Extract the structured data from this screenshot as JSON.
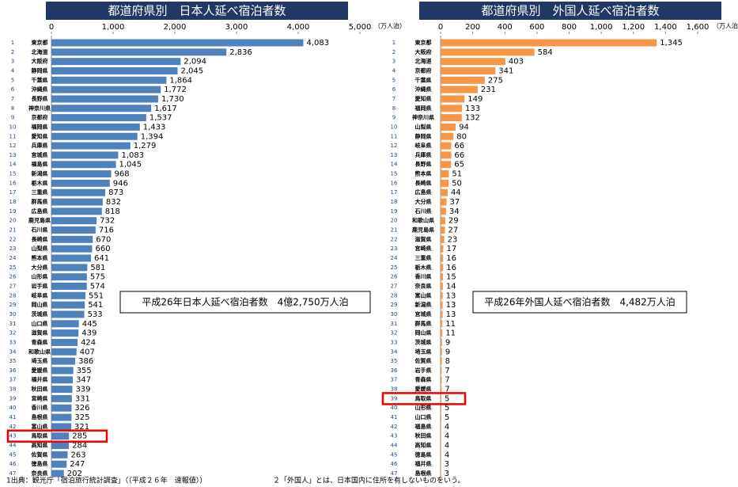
{
  "chart_data": [
    {
      "type": "bar",
      "orientation": "horizontal",
      "title": "都道府県別　日本人延べ宿泊者数",
      "unit": "（万人泊）",
      "color": "#4f81bd",
      "annotation": "平成26年日本人延べ宿泊者数　4億2,750万人泊",
      "highlight_index": 42,
      "xlim": [
        0,
        5000
      ],
      "xticks": [
        0,
        {
          "value": 1000,
          "label": "1,000"
        },
        {
          "value": 2000,
          "label": "2,000"
        },
        {
          "value": 3000,
          "label": "3,000"
        },
        {
          "value": 4000,
          "label": "4,000"
        },
        {
          "value": 5000,
          "label": "5,000"
        }
      ],
      "ranks": [
        1,
        2,
        3,
        4,
        5,
        6,
        7,
        8,
        9,
        10,
        11,
        12,
        13,
        14,
        15,
        16,
        17,
        18,
        19,
        20,
        21,
        22,
        23,
        24,
        25,
        26,
        27,
        28,
        29,
        30,
        31,
        32,
        33,
        34,
        35,
        36,
        37,
        38,
        39,
        40,
        41,
        42,
        43,
        44,
        45,
        46,
        47
      ],
      "categories": [
        "東京都",
        "北海道",
        "大阪府",
        "静岡県",
        "千葉県",
        "沖縄県",
        "長野県",
        "神奈川県",
        "京都府",
        "福岡県",
        "愛知県",
        "兵庫県",
        "宮城県",
        "福島県",
        "新潟県",
        "栃木県",
        "三重県",
        "群馬県",
        "広島県",
        "鹿児島県",
        "石川県",
        "長崎県",
        "山梨県",
        "熊本県",
        "大分県",
        "山形県",
        "岩手県",
        "岐阜県",
        "岡山県",
        "茨城県",
        "山口県",
        "滋賀県",
        "青森県",
        "和歌山県",
        "埼玉県",
        "愛媛県",
        "福井県",
        "秋田県",
        "宮崎県",
        "香川県",
        "島根県",
        "富山県",
        "鳥取県",
        "高知県",
        "佐賀県",
        "徳島県",
        "奈良県"
      ],
      "values": [
        4083,
        2836,
        2094,
        2045,
        1864,
        1772,
        1730,
        1617,
        1537,
        1433,
        1394,
        1279,
        1083,
        1045,
        968,
        946,
        873,
        832,
        818,
        732,
        716,
        670,
        660,
        641,
        581,
        575,
        574,
        551,
        541,
        533,
        445,
        439,
        424,
        407,
        386,
        355,
        347,
        339,
        331,
        326,
        325,
        321,
        285,
        284,
        263,
        247,
        202
      ],
      "value_labels": [
        "4,083",
        "2,836",
        "2,094",
        "2,045",
        "1,864",
        "1,772",
        "1,730",
        "1,617",
        "1,537",
        "1,433",
        "1,394",
        "1,279",
        "1,083",
        "1,045",
        "968",
        "946",
        "873",
        "832",
        "818",
        "732",
        "716",
        "670",
        "660",
        "641",
        "581",
        "575",
        "574",
        "551",
        "541",
        "533",
        "445",
        "439",
        "424",
        "407",
        "386",
        "355",
        "347",
        "339",
        "331",
        "326",
        "325",
        "321",
        "285",
        "284",
        "263",
        "247",
        "202"
      ]
    },
    {
      "type": "bar",
      "orientation": "horizontal",
      "title": "都道府県別　外国人延べ宿泊者数",
      "unit": "（万人泊",
      "color": "#f79646",
      "annotation": "平成26年外国人延べ宿泊者数　4,482万人泊",
      "highlight_index": 38,
      "xlim": [
        0,
        1600
      ],
      "xticks": [
        0,
        200,
        400,
        600,
        800,
        {
          "value": 1000,
          "label": "1,000"
        },
        {
          "value": 1200,
          "label": "1,200"
        },
        {
          "value": 1400,
          "label": "1,400"
        },
        {
          "value": 1600,
          "label": "1,600"
        }
      ],
      "ranks": [
        1,
        2,
        3,
        4,
        5,
        6,
        7,
        8,
        9,
        10,
        11,
        12,
        13,
        14,
        15,
        16,
        17,
        18,
        19,
        20,
        21,
        22,
        23,
        24,
        25,
        26,
        27,
        28,
        29,
        30,
        31,
        32,
        33,
        34,
        35,
        36,
        37,
        38,
        39,
        40,
        41,
        42,
        43,
        44,
        45,
        46,
        47
      ],
      "categories": [
        "東京都",
        "大阪府",
        "北海道",
        "京都府",
        "千葉県",
        "沖縄県",
        "愛知県",
        "福岡県",
        "神奈川県",
        "山梨県",
        "静岡県",
        "岐阜県",
        "兵庫県",
        "長野県",
        "熊本県",
        "長崎県",
        "広島県",
        "大分県",
        "石川県",
        "和歌山県",
        "鹿児島県",
        "滋賀県",
        "宮崎県",
        "三重県",
        "栃木県",
        "香川県",
        "奈良県",
        "富山県",
        "新潟県",
        "宮城県",
        "群馬県",
        "岡山県",
        "茨城県",
        "埼玉県",
        "佐賀県",
        "岩手県",
        "青森県",
        "愛媛県",
        "鳥取県",
        "山形県",
        "山口県",
        "福島県",
        "秋田県",
        "高知県",
        "徳島県",
        "福井県",
        "島根県"
      ],
      "values": [
        1345,
        584,
        403,
        341,
        275,
        231,
        149,
        133,
        132,
        94,
        80,
        66,
        66,
        65,
        51,
        50,
        44,
        37,
        34,
        29,
        27,
        23,
        17,
        16,
        16,
        15,
        14,
        13,
        13,
        13,
        11,
        11,
        9,
        9,
        8,
        7,
        7,
        7,
        5,
        5,
        5,
        4,
        4,
        4,
        4,
        3,
        3
      ],
      "value_labels": [
        "1,345",
        "584",
        "403",
        "341",
        "275",
        "231",
        "149",
        "133",
        "132",
        "94",
        "80",
        "66",
        "66",
        "65",
        "51",
        "50",
        "44",
        "37",
        "34",
        "29",
        "27",
        "23",
        "17",
        "16",
        "16",
        "15",
        "14",
        "13",
        "13",
        "13",
        "11",
        "11",
        "9",
        "9",
        "8",
        "7",
        "7",
        "7",
        "5",
        "5",
        "5",
        "4",
        "4",
        "4",
        "4",
        "3",
        "3"
      ]
    }
  ],
  "footnotes": [
    "1出典：観光庁「宿泊旅行統計調査」（（平成２６年　速報値））",
    "２「外国人」とは、日本国内に住所を有しないものをいう。"
  ]
}
